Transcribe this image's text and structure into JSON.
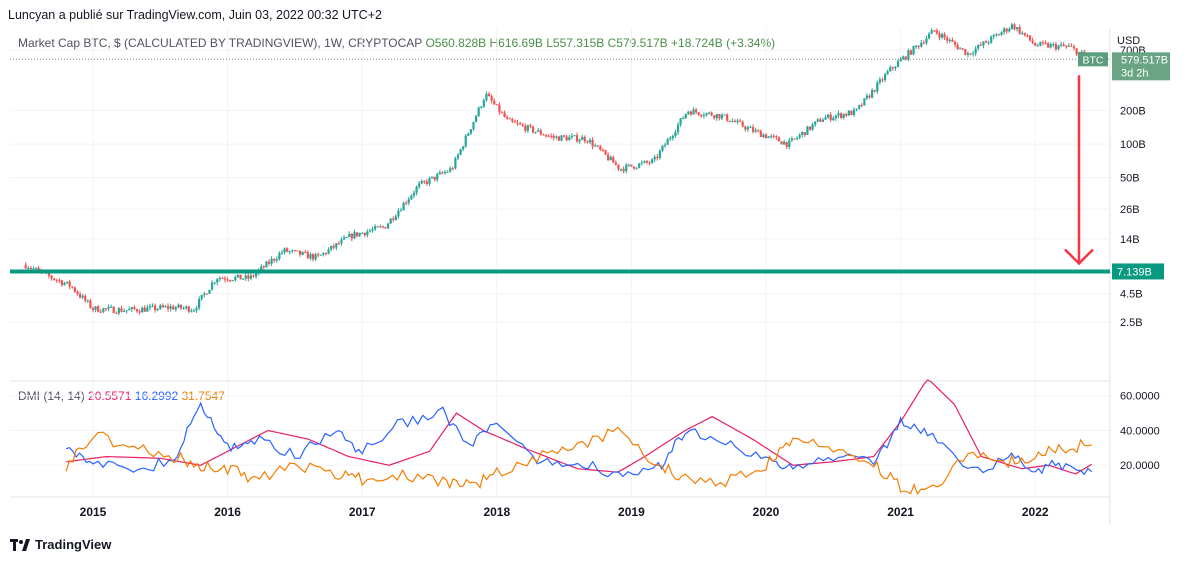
{
  "header": {
    "publisher_text": "Luncyan a publié sur TradingView.com, Juin 03, 2022 00:32 UTC+2"
  },
  "legend": {
    "symbol_line": "Market Cap BTC, $ (CALCULATED BY TRADINGVIEW), 1W, CRYPTOCAP",
    "open": "O560.828B",
    "high": "H616.69B",
    "low": "L557.315B",
    "close": "C579.517B",
    "change": "+18.724B (+3.34%)"
  },
  "dmi_legend": {
    "label": "DMI (14, 14)",
    "adx": "20.5571",
    "plus_di": "16.2992",
    "minus_di": "31.7547"
  },
  "price_tag": {
    "symbol": "BTC",
    "value": "579.517B",
    "countdown": "3d 2h"
  },
  "level_tag": "7.139B",
  "footer": {
    "brand": "TradingView"
  },
  "colors": {
    "up": "#26a69a",
    "down": "#ef5350",
    "level_line": "#089981",
    "arrow": "#f23645",
    "adx": "#e91e63",
    "plus_di": "#2962ff",
    "minus_di": "#f57c00",
    "grid": "#f0f3fa"
  },
  "chart_data": [
    {
      "type": "candlestick",
      "title": "Market Cap BTC, $ (CALCULATED BY TRADINGVIEW), 1W, CRYPTOCAP",
      "y_scale": "log",
      "y_unit": "USD",
      "y_ticks": [
        "700B",
        "200B",
        "100B",
        "50B",
        "26B",
        "14B",
        "4.5B",
        "2.5B"
      ],
      "x_ticks": [
        "2015",
        "2016",
        "2017",
        "2018",
        "2019",
        "2020",
        "2021",
        "2022"
      ],
      "approx_weekly_close_path": [
        {
          "date": "2014-07",
          "value_b": 8.2
        },
        {
          "date": "2014-09",
          "value_b": 6.5
        },
        {
          "date": "2014-11",
          "value_b": 5.3
        },
        {
          "date": "2015-01",
          "value_b": 3.3
        },
        {
          "date": "2015-04",
          "value_b": 3.2
        },
        {
          "date": "2015-08",
          "value_b": 3.4
        },
        {
          "date": "2015-10",
          "value_b": 3.3
        },
        {
          "date": "2015-12",
          "value_b": 6.3
        },
        {
          "date": "2016-03",
          "value_b": 6.2
        },
        {
          "date": "2016-06",
          "value_b": 11.0
        },
        {
          "date": "2016-09",
          "value_b": 9.5
        },
        {
          "date": "2016-12",
          "value_b": 15.0
        },
        {
          "date": "2017-03",
          "value_b": 18.0
        },
        {
          "date": "2017-06",
          "value_b": 42.0
        },
        {
          "date": "2017-09",
          "value_b": 60.0
        },
        {
          "date": "2017-12",
          "value_b": 280.0
        },
        {
          "date": "2018-02",
          "value_b": 160.0
        },
        {
          "date": "2018-06",
          "value_b": 115.0
        },
        {
          "date": "2018-09",
          "value_b": 112.0
        },
        {
          "date": "2018-12",
          "value_b": 60.0
        },
        {
          "date": "2019-03",
          "value_b": 70.0
        },
        {
          "date": "2019-06",
          "value_b": 200.0
        },
        {
          "date": "2019-09",
          "value_b": 180.0
        },
        {
          "date": "2019-12",
          "value_b": 130.0
        },
        {
          "date": "2020-03",
          "value_b": 100.0
        },
        {
          "date": "2020-06",
          "value_b": 170.0
        },
        {
          "date": "2020-09",
          "value_b": 195.0
        },
        {
          "date": "2020-12",
          "value_b": 460.0
        },
        {
          "date": "2021-04",
          "value_b": 1050.0
        },
        {
          "date": "2021-07",
          "value_b": 650.0
        },
        {
          "date": "2021-11",
          "value_b": 1180.0
        },
        {
          "date": "2022-01",
          "value_b": 780.0
        },
        {
          "date": "2022-04",
          "value_b": 750.0
        },
        {
          "date": "2022-06",
          "value_b": 579.5
        }
      ],
      "last": {
        "open_b": 560.828,
        "high_b": 616.69,
        "low_b": 557.315,
        "close_b": 579.517
      },
      "horizontal_level_b": 7.139,
      "annotation": "red arrow from current price down to 7.139B level"
    },
    {
      "type": "line",
      "title": "DMI (14, 14)",
      "ylim": [
        0,
        70
      ],
      "y_ticks": [
        20,
        40,
        60
      ],
      "series": [
        {
          "name": "ADX",
          "last": 20.5571,
          "x": [
            2014.8,
            2015.1,
            2015.5,
            2015.8,
            2016.0,
            2016.3,
            2016.6,
            2016.9,
            2017.2,
            2017.5,
            2017.7,
            2017.9,
            2018.2,
            2018.6,
            2018.9,
            2019.1,
            2019.4,
            2019.6,
            2019.9,
            2020.2,
            2020.5,
            2020.8,
            2021.0,
            2021.2,
            2021.4,
            2021.6,
            2021.9,
            2022.1,
            2022.3,
            2022.42
          ],
          "y": [
            22,
            25,
            24,
            20,
            28,
            40,
            35,
            25,
            20,
            28,
            50,
            40,
            30,
            18,
            16,
            25,
            40,
            48,
            35,
            20,
            22,
            25,
            45,
            70,
            55,
            25,
            18,
            20,
            15,
            20.5571
          ]
        },
        {
          "name": "+DI",
          "last": 16.2992,
          "x": [
            2014.8,
            2015.0,
            2015.3,
            2015.6,
            2015.8,
            2016.0,
            2016.2,
            2016.5,
            2016.8,
            2017.0,
            2017.3,
            2017.6,
            2017.8,
            2018.0,
            2018.3,
            2018.6,
            2018.9,
            2019.2,
            2019.4,
            2019.7,
            2020.0,
            2020.2,
            2020.5,
            2020.8,
            2021.0,
            2021.2,
            2021.5,
            2021.8,
            2022.0,
            2022.2,
            2022.42
          ],
          "y": [
            33,
            20,
            18,
            22,
            55,
            30,
            35,
            25,
            40,
            28,
            45,
            50,
            30,
            45,
            20,
            22,
            15,
            18,
            40,
            35,
            22,
            18,
            25,
            22,
            45,
            40,
            15,
            25,
            18,
            20,
            16.2992
          ]
        },
        {
          "name": "-DI",
          "last": 31.7547,
          "x": [
            2014.8,
            2015.0,
            2015.3,
            2015.6,
            2015.8,
            2016.0,
            2016.2,
            2016.5,
            2016.8,
            2017.0,
            2017.3,
            2017.6,
            2017.8,
            2018.0,
            2018.3,
            2018.6,
            2018.9,
            2019.2,
            2019.4,
            2019.7,
            2020.0,
            2020.2,
            2020.5,
            2020.8,
            2021.0,
            2021.2,
            2021.5,
            2021.8,
            2022.0,
            2022.2,
            2022.42
          ],
          "y": [
            20,
            38,
            30,
            25,
            20,
            18,
            12,
            20,
            15,
            12,
            15,
            10,
            8,
            15,
            25,
            30,
            40,
            20,
            12,
            10,
            20,
            35,
            28,
            20,
            8,
            5,
            25,
            22,
            25,
            30,
            31.7547
          ]
        }
      ]
    }
  ]
}
